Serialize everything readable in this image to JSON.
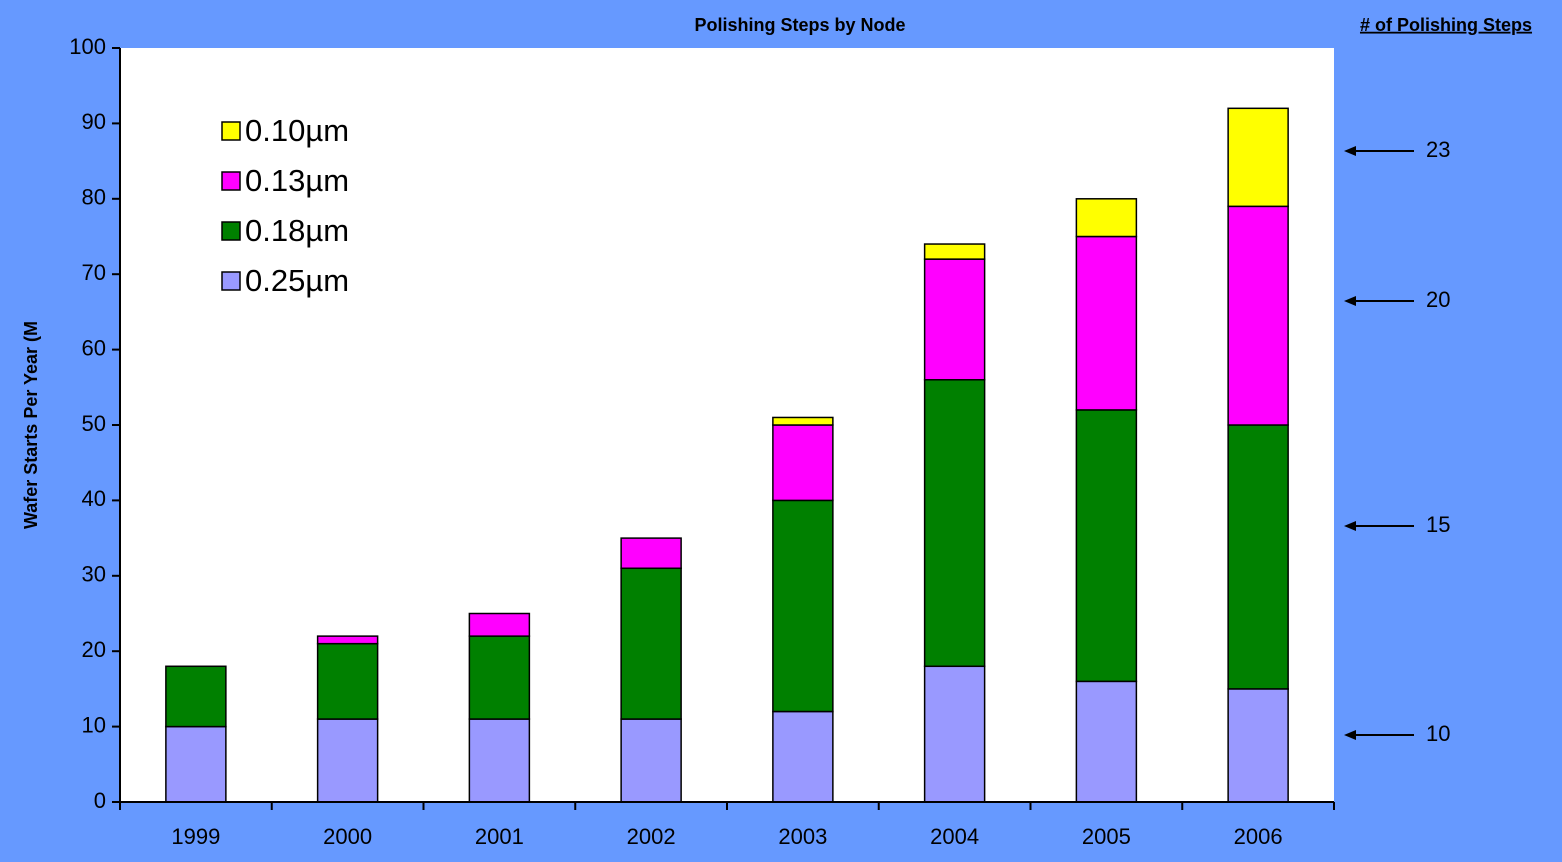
{
  "chart_data": {
    "type": "bar",
    "stacked": true,
    "title": "Polishing Steps by Node",
    "y_label": "Wafer Starts Per Year (M",
    "categories": [
      "1999",
      "2000",
      "2001",
      "2002",
      "2003",
      "2004",
      "2005",
      "2006"
    ],
    "series": [
      {
        "name": "0.25µm",
        "color": "#9999ff",
        "values": [
          10,
          11,
          11,
          11,
          12,
          18,
          16,
          15
        ]
      },
      {
        "name": "0.18µm",
        "color": "#008000",
        "values": [
          8,
          10,
          11,
          20,
          28,
          38,
          36,
          35
        ]
      },
      {
        "name": "0.13µm",
        "color": "#ff00ff",
        "values": [
          0,
          1,
          3,
          4,
          10,
          16,
          23,
          29
        ]
      },
      {
        "name": "0.10µm",
        "color": "#ffff00",
        "values": [
          0,
          0,
          0,
          0,
          1,
          2,
          5,
          13
        ]
      }
    ],
    "ylim": [
      0,
      100
    ],
    "yticks": [
      0,
      10,
      20,
      30,
      40,
      50,
      60,
      70,
      80,
      90,
      100
    ],
    "legend": "upper left",
    "annotations": {
      "title": "# of Polishing Steps",
      "labels": [
        23,
        20,
        15,
        10
      ]
    }
  }
}
